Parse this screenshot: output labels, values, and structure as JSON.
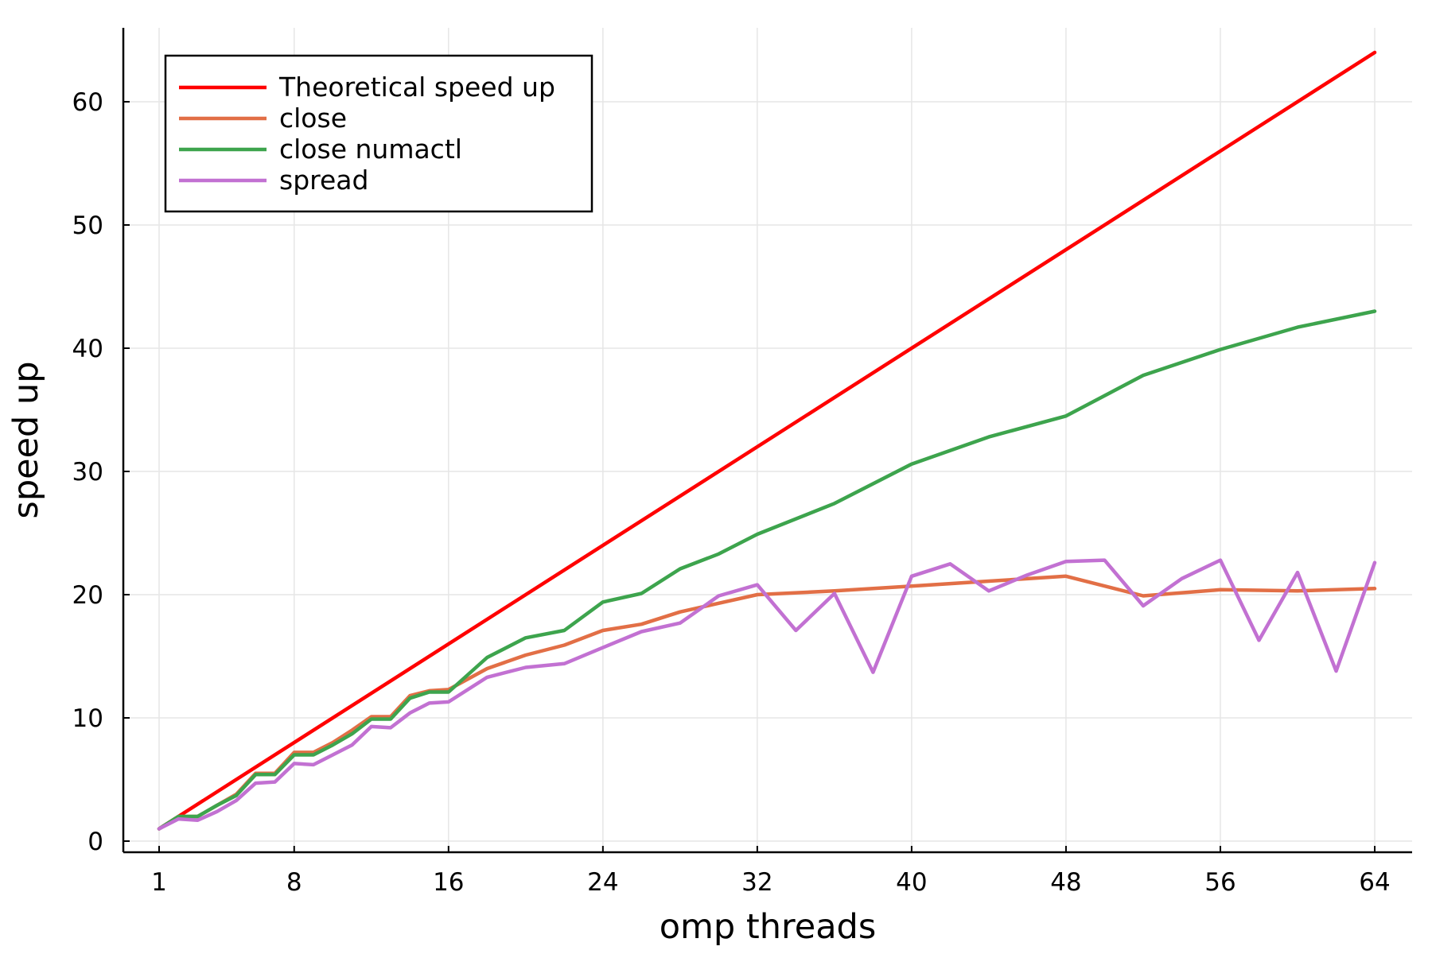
{
  "chart_data": {
    "type": "line",
    "title": "",
    "xlabel": "omp threads",
    "ylabel": "speed up",
    "xlim": [
      1,
      64
    ],
    "ylim": [
      0,
      64
    ],
    "xticks": [
      1,
      8,
      16,
      24,
      32,
      40,
      48,
      56,
      64
    ],
    "yticks": [
      0,
      10,
      20,
      30,
      40,
      50,
      60
    ],
    "grid": true,
    "legend_position": "top-left",
    "series": [
      {
        "name": "Theoretical speed up",
        "color": "#ff0000",
        "points": [
          [
            1,
            1
          ],
          [
            64,
            64
          ]
        ]
      },
      {
        "name": "close",
        "color": "#e26f46",
        "points": [
          [
            1,
            1
          ],
          [
            2,
            2.0
          ],
          [
            3,
            2.0
          ],
          [
            4,
            2.9
          ],
          [
            5,
            3.8
          ],
          [
            6,
            5.5
          ],
          [
            7,
            5.5
          ],
          [
            8,
            7.2
          ],
          [
            9,
            7.2
          ],
          [
            10,
            8.0
          ],
          [
            11,
            9.0
          ],
          [
            12,
            10.1
          ],
          [
            13,
            10.1
          ],
          [
            14,
            11.8
          ],
          [
            15,
            12.2
          ],
          [
            16,
            12.3
          ],
          [
            18,
            14.0
          ],
          [
            20,
            15.1
          ],
          [
            22,
            15.9
          ],
          [
            24,
            17.1
          ],
          [
            26,
            17.6
          ],
          [
            28,
            18.6
          ],
          [
            30,
            19.3
          ],
          [
            32,
            20.0
          ],
          [
            36,
            20.3
          ],
          [
            40,
            20.7
          ],
          [
            44,
            21.1
          ],
          [
            48,
            21.5
          ],
          [
            52,
            19.9
          ],
          [
            56,
            20.4
          ],
          [
            60,
            20.3
          ],
          [
            64,
            20.5
          ]
        ]
      },
      {
        "name": "close numactl",
        "color": "#3da44d",
        "points": [
          [
            1,
            1
          ],
          [
            2,
            2.0
          ],
          [
            3,
            2.0
          ],
          [
            4,
            2.9
          ],
          [
            5,
            3.7
          ],
          [
            6,
            5.4
          ],
          [
            7,
            5.4
          ],
          [
            8,
            7.0
          ],
          [
            9,
            7.0
          ],
          [
            10,
            7.8
          ],
          [
            11,
            8.7
          ],
          [
            12,
            9.9
          ],
          [
            13,
            9.9
          ],
          [
            14,
            11.6
          ],
          [
            15,
            12.1
          ],
          [
            16,
            12.1
          ],
          [
            18,
            14.9
          ],
          [
            20,
            16.5
          ],
          [
            22,
            17.1
          ],
          [
            24,
            19.4
          ],
          [
            26,
            20.1
          ],
          [
            28,
            22.1
          ],
          [
            30,
            23.3
          ],
          [
            32,
            24.9
          ],
          [
            36,
            27.4
          ],
          [
            40,
            30.6
          ],
          [
            44,
            32.8
          ],
          [
            48,
            34.5
          ],
          [
            52,
            37.8
          ],
          [
            56,
            39.9
          ],
          [
            60,
            41.7
          ],
          [
            64,
            43.0
          ]
        ]
      },
      {
        "name": "spread",
        "color": "#c271d2",
        "points": [
          [
            1,
            1
          ],
          [
            2,
            1.8
          ],
          [
            3,
            1.7
          ],
          [
            4,
            2.4
          ],
          [
            5,
            3.3
          ],
          [
            6,
            4.7
          ],
          [
            7,
            4.8
          ],
          [
            8,
            6.3
          ],
          [
            9,
            6.2
          ],
          [
            10,
            7.0
          ],
          [
            11,
            7.8
          ],
          [
            12,
            9.3
          ],
          [
            13,
            9.2
          ],
          [
            14,
            10.4
          ],
          [
            15,
            11.2
          ],
          [
            16,
            11.3
          ],
          [
            18,
            13.3
          ],
          [
            20,
            14.1
          ],
          [
            22,
            14.4
          ],
          [
            24,
            15.7
          ],
          [
            26,
            17.0
          ],
          [
            28,
            17.7
          ],
          [
            30,
            19.9
          ],
          [
            32,
            20.8
          ],
          [
            34,
            17.1
          ],
          [
            36,
            20.1
          ],
          [
            38,
            13.7
          ],
          [
            40,
            21.5
          ],
          [
            42,
            22.5
          ],
          [
            44,
            20.3
          ],
          [
            46,
            21.6
          ],
          [
            48,
            22.7
          ],
          [
            50,
            22.8
          ],
          [
            52,
            19.1
          ],
          [
            54,
            21.3
          ],
          [
            56,
            22.8
          ],
          [
            58,
            16.3
          ],
          [
            60,
            21.8
          ],
          [
            62,
            13.8
          ],
          [
            64,
            22.6
          ]
        ]
      }
    ]
  }
}
